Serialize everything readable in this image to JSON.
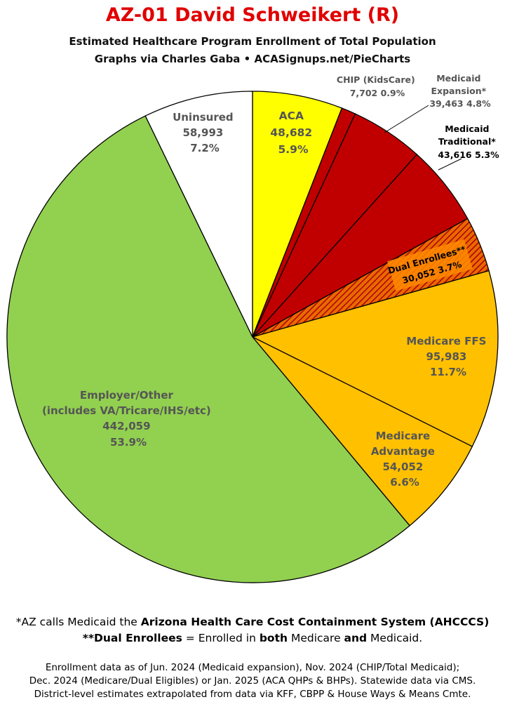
{
  "header": {
    "title": "AZ-01 David Schweikert (R)",
    "subtitle1": "Estimated Healthcare Program Enrollment of Total Population",
    "subtitle2": "Graphs via Charles Gaba  •  ACASignups.net/PieCharts"
  },
  "chart_data": {
    "type": "pie",
    "start_angle_deg": 0,
    "direction": "clockwise",
    "slices": [
      {
        "name": "ACA",
        "value": 48682,
        "percent": 5.9,
        "value_label": "48,682",
        "percent_label": "5.9%",
        "color": "#ffff00"
      },
      {
        "name": "CHIP (KidsCare)",
        "value": 7702,
        "percent": 0.9,
        "value_label": "7,702",
        "percent_label": "0.9%",
        "color": "#c00000"
      },
      {
        "name": "Medicaid Expansion*",
        "value": 39463,
        "percent": 4.8,
        "value_label": "39,463",
        "percent_label": "4.8%",
        "color": "#c00000"
      },
      {
        "name": "Medicaid Traditional*",
        "value": 43616,
        "percent": 5.3,
        "value_label": "43,616",
        "percent_label": "5.3%",
        "color": "#c00000"
      },
      {
        "name": "Dual Enrollees**",
        "value": 30052,
        "percent": 3.7,
        "value_label": "30,052",
        "percent_label": "3.7%",
        "color": "#e86a00",
        "pattern": "hatched"
      },
      {
        "name": "Medicare FFS",
        "value": 95983,
        "percent": 11.7,
        "value_label": "95,983",
        "percent_label": "11.7%",
        "color": "#ffc000"
      },
      {
        "name": "Medicare Advantage",
        "value": 54052,
        "percent": 6.6,
        "value_label": "54,052",
        "percent_label": "6.6%",
        "color": "#ffc000"
      },
      {
        "name": "Employer/Other (includes VA/Tricare/IHS/etc)",
        "value": 442059,
        "percent": 53.9,
        "value_label": "442,059",
        "percent_label": "53.9%",
        "color": "#92d050"
      },
      {
        "name": "Uninsured",
        "value": 58993,
        "percent": 7.2,
        "value_label": "58,993",
        "percent_label": "7.2%",
        "color": "#ffffff"
      }
    ],
    "labels": {
      "aca": [
        "ACA",
        "48,682",
        "5.9%"
      ],
      "chip": [
        "CHIP (KidsCare)",
        "7,702 0.9%"
      ],
      "medicaid_exp": [
        "Medicaid",
        "Expansion*",
        "39,463 4.8%"
      ],
      "medicaid_trad": [
        "Medicaid",
        "Traditional*",
        "43,616 5.3%"
      ],
      "dual": [
        "Dual Enrollees**",
        "30,052 3.7%"
      ],
      "medicare_ffs": [
        "Medicare FFS",
        "95,983",
        "11.7%"
      ],
      "medicare_adv": [
        "Medicare",
        "Advantage",
        "54,052",
        "6.6%"
      ],
      "employer": [
        "Employer/Other",
        "(includes VA/Tricare/IHS/etc)",
        "442,059",
        "53.9%"
      ],
      "uninsured": [
        "Uninsured",
        "58,993",
        "7.2%"
      ]
    }
  },
  "footnotes": {
    "line1_a": "*AZ calls Medicaid the ",
    "line1_b": "Arizona Health Care Cost Containment System (AHCCCS)",
    "line2_a": "**Dual Enrollees",
    "line2_b": " = Enrolled in ",
    "line2_c": "both",
    "line2_d": " Medicare ",
    "line2_e": "and",
    "line2_f": " Medicaid.",
    "src1": "Enrollment data as of Jun. 2024 (Medicaid expansion), Nov. 2024 (CHIP/Total Medicaid);",
    "src2": "Dec. 2024 (Medicare/Dual Eligibles) or Jan. 2025 (ACA QHPs & BHPs). Statewide data via CMS.",
    "src3": "District-level estimates extrapolated from data via KFF, CBPP & House Ways & Means Cmte."
  }
}
